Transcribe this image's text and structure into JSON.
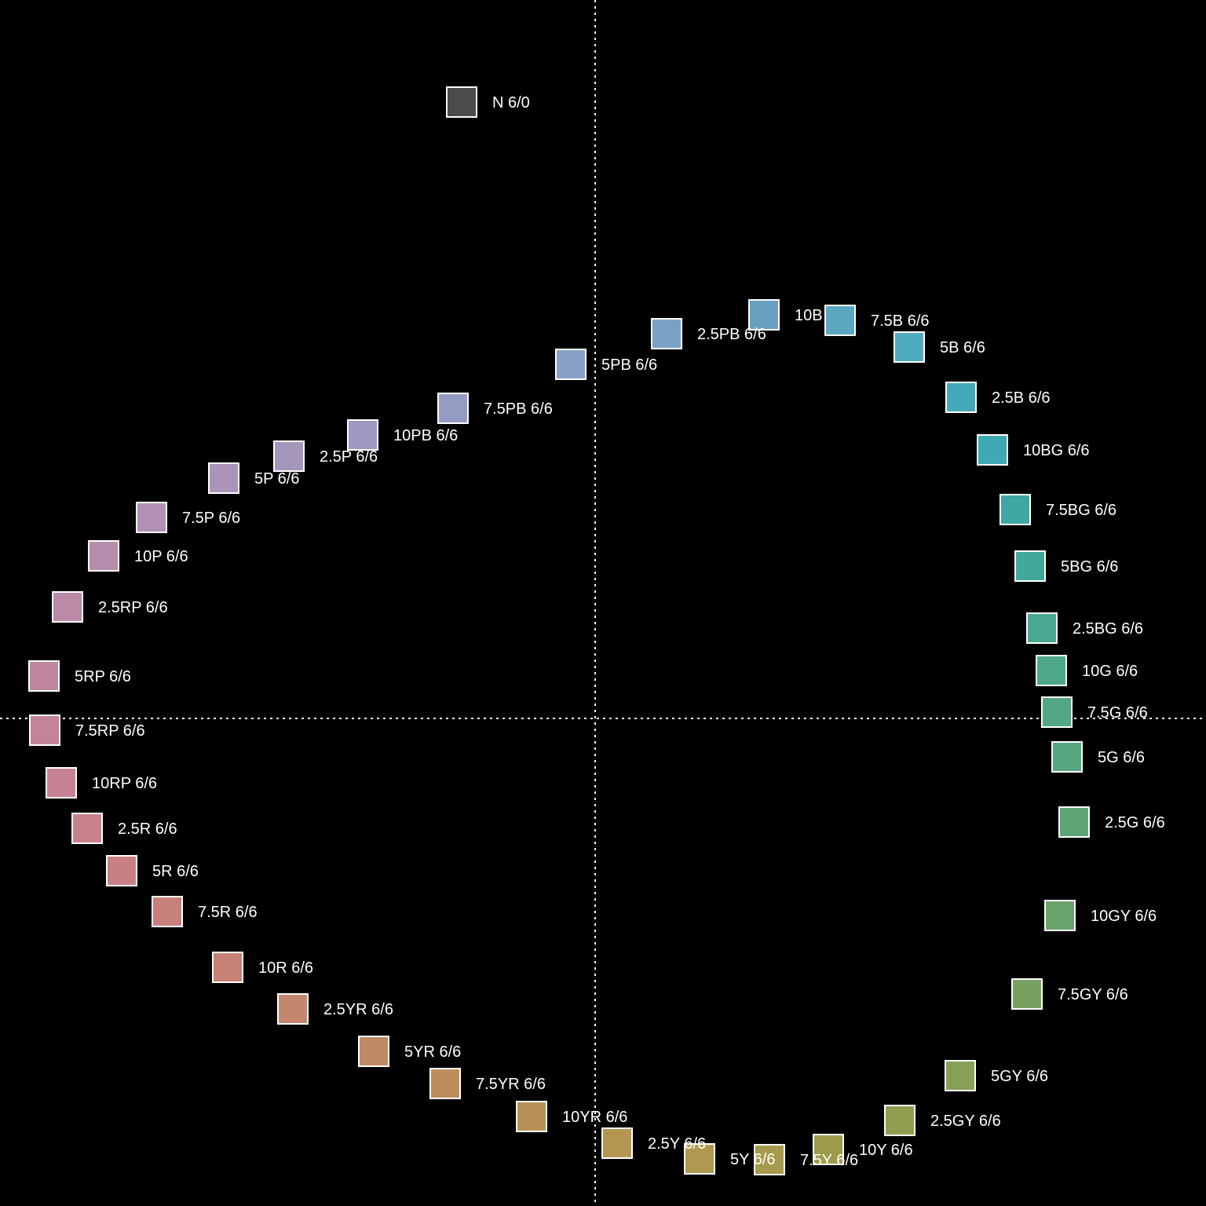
{
  "chart_data": {
    "type": "scatter",
    "title": "",
    "xlabel": "",
    "ylabel": "",
    "xlim": [
      -758,
      778
    ],
    "ylim": [
      -621,
      915
    ],
    "grid": false,
    "axes_lines": "dotted white lines through origin",
    "marker": "square swatch with white outline",
    "points": [
      {
        "label": "N 6/0",
        "x": -170,
        "y": 785,
        "color": "#4a4b4b"
      },
      {
        "label": "10B 6/6",
        "x": 215,
        "y": 514,
        "color": "#6a9fbf"
      },
      {
        "label": "7.5B 6/6",
        "x": 312,
        "y": 507,
        "color": "#5aa7c2"
      },
      {
        "label": "5B 6/6",
        "x": 400,
        "y": 473,
        "color": "#4eabbe"
      },
      {
        "label": "2.5B 6/6",
        "x": 466,
        "y": 409,
        "color": "#42aabb"
      },
      {
        "label": "10BG 6/6",
        "x": 506,
        "y": 342,
        "color": "#3ea9b3"
      },
      {
        "label": "7.5BG 6/6",
        "x": 535,
        "y": 266,
        "color": "#3ea8a3"
      },
      {
        "label": "5BG 6/6",
        "x": 554,
        "y": 194,
        "color": "#42a99a"
      },
      {
        "label": "2.5BG 6/6",
        "x": 569,
        "y": 115,
        "color": "#48a891"
      },
      {
        "label": "10G 6/6",
        "x": 581,
        "y": 61,
        "color": "#4da889"
      },
      {
        "label": "7.5G 6/6",
        "x": 588,
        "y": 8,
        "color": "#52a683"
      },
      {
        "label": "5G 6/6",
        "x": 601,
        "y": -49,
        "color": "#56a67f"
      },
      {
        "label": "2.5G 6/6",
        "x": 610,
        "y": -132,
        "color": "#5ea576"
      },
      {
        "label": "10GY 6/6",
        "x": 592,
        "y": -251,
        "color": "#6aa26c"
      },
      {
        "label": "7.5GY 6/6",
        "x": 550,
        "y": -351,
        "color": "#78a160"
      },
      {
        "label": "5GY 6/6",
        "x": 465,
        "y": -455,
        "color": "#879f56"
      },
      {
        "label": "2.5GY 6/6",
        "x": 388,
        "y": -512,
        "color": "#929e4f"
      },
      {
        "label": "10Y 6/6",
        "x": 297,
        "y": -549,
        "color": "#9e9c4c"
      },
      {
        "label": "7.5Y 6/6",
        "x": 222,
        "y": -562,
        "color": "#a69b4c"
      },
      {
        "label": "5Y 6/6",
        "x": 133,
        "y": -561,
        "color": "#ae994e"
      },
      {
        "label": "2.5Y 6/6",
        "x": 28,
        "y": -541,
        "color": "#b49552"
      },
      {
        "label": "10YR 6/6",
        "x": -81,
        "y": -507,
        "color": "#b99157"
      },
      {
        "label": "7.5YR 6/6",
        "x": -191,
        "y": -465,
        "color": "#bd8d5d"
      },
      {
        "label": "5YR 6/6",
        "x": -282,
        "y": -424,
        "color": "#c18966"
      },
      {
        "label": "2.5YR 6/6",
        "x": -385,
        "y": -370,
        "color": "#c4866e"
      },
      {
        "label": "10R 6/6",
        "x": -468,
        "y": -317,
        "color": "#c78276"
      },
      {
        "label": "7.5R 6/6",
        "x": -545,
        "y": -246,
        "color": "#c8807d"
      },
      {
        "label": "5R 6/6",
        "x": -603,
        "y": -194,
        "color": "#c98084"
      },
      {
        "label": "2.5R 6/6",
        "x": -647,
        "y": -140,
        "color": "#c8808b"
      },
      {
        "label": "10RP 6/6",
        "x": -680,
        "y": -82,
        "color": "#c78192"
      },
      {
        "label": "7.5RP 6/6",
        "x": -701,
        "y": -15,
        "color": "#c48399"
      },
      {
        "label": "5RP 6/6",
        "x": -702,
        "y": 54,
        "color": "#c086a0"
      },
      {
        "label": "2.5RP 6/6",
        "x": -672,
        "y": 142,
        "color": "#bc89a7"
      },
      {
        "label": "10P 6/6",
        "x": -626,
        "y": 207,
        "color": "#b78dae"
      },
      {
        "label": "7.5P 6/6",
        "x": -565,
        "y": 256,
        "color": "#b290b3"
      },
      {
        "label": "5P 6/6",
        "x": -473,
        "y": 306,
        "color": "#ac93b8"
      },
      {
        "label": "2.5P 6/6",
        "x": -390,
        "y": 334,
        "color": "#a596bc"
      },
      {
        "label": "10PB 6/6",
        "x": -296,
        "y": 361,
        "color": "#9d99c0"
      },
      {
        "label": "7.5PB 6/6",
        "x": -181,
        "y": 395,
        "color": "#949cc3"
      },
      {
        "label": "5PB 6/6",
        "x": -31,
        "y": 451,
        "color": "#88a0c5"
      },
      {
        "label": "2.5PB 6/6",
        "x": 91,
        "y": 490,
        "color": "#7aa2c4"
      }
    ]
  }
}
